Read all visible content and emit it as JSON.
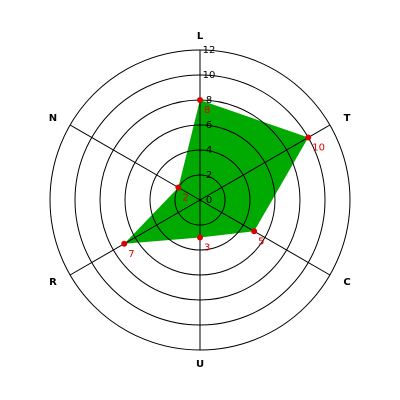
{
  "chart_data": {
    "type": "radar",
    "categories": [
      "L",
      "T",
      "C",
      "U",
      "R",
      "N"
    ],
    "values": [
      8,
      10,
      5,
      3,
      7,
      2
    ],
    "fill_color": "#00aa00",
    "point_color": "#dd0000",
    "rlim": [
      0,
      12
    ],
    "rticks": [
      0,
      2,
      4,
      6,
      8,
      10,
      12
    ]
  }
}
